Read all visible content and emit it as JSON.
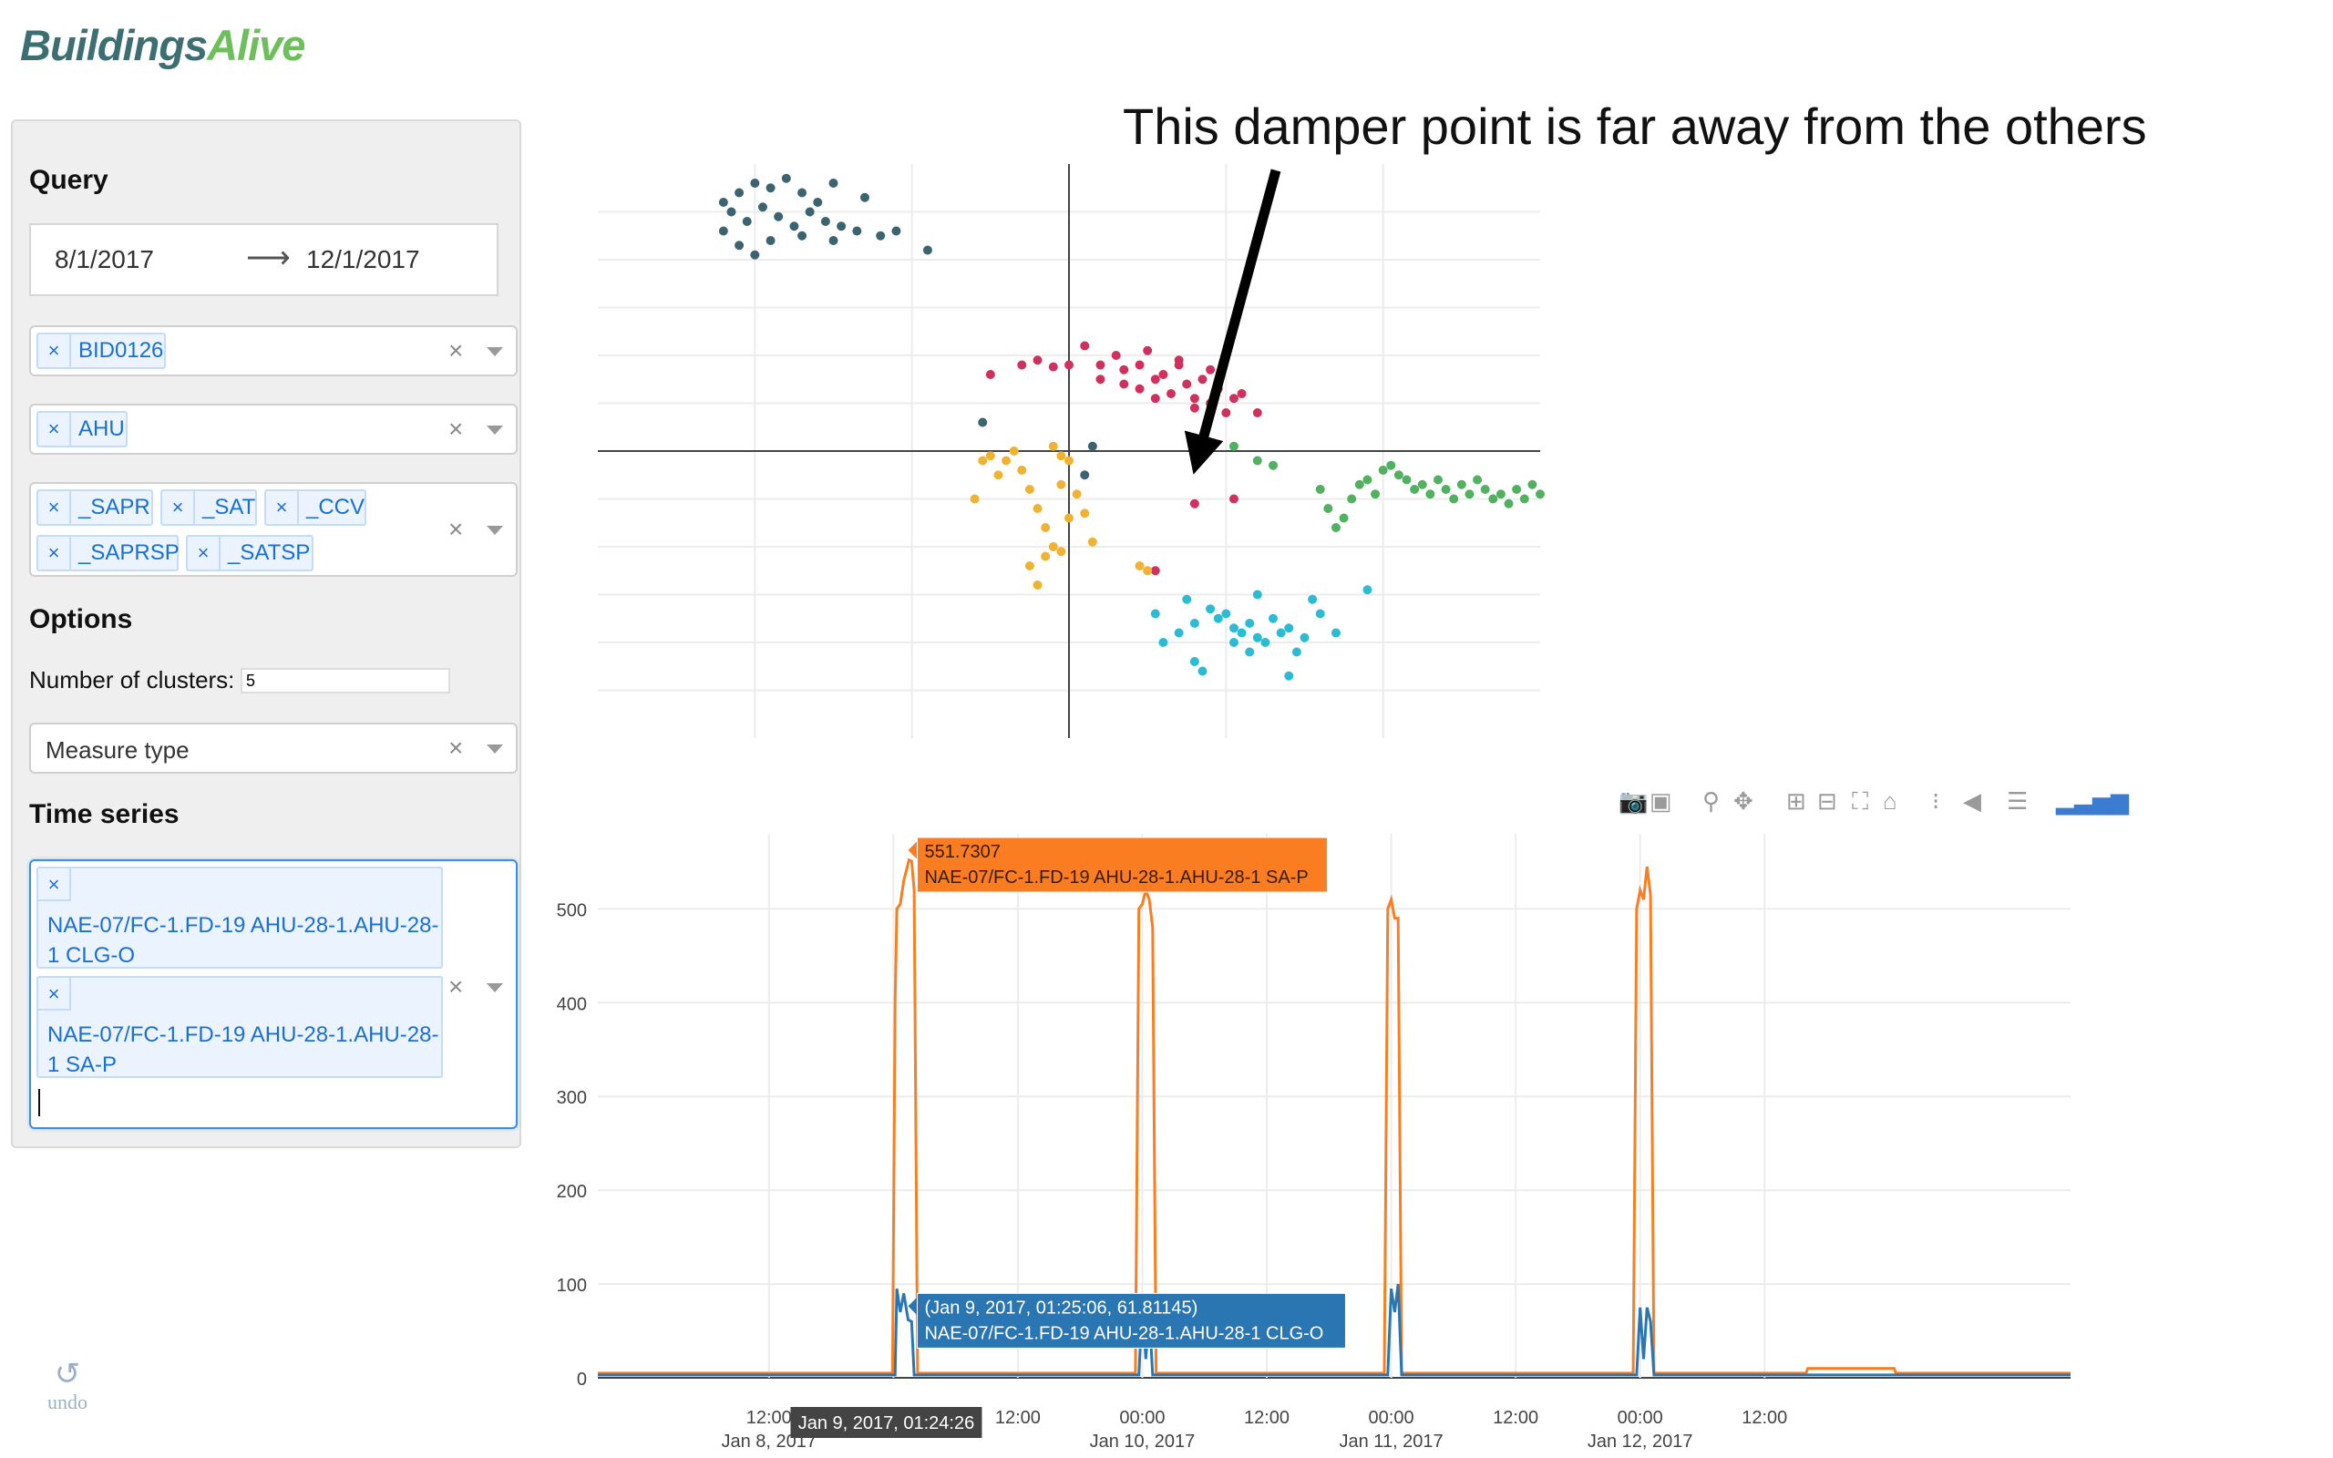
{
  "logo": {
    "part1": "Buildings",
    "part2": "Alive"
  },
  "query": {
    "title": "Query",
    "date_from": "8/1/2017",
    "arrow": "⟶",
    "date_to": "12/1/2017",
    "building": [
      "BID0126"
    ],
    "equipment": [
      "AHU"
    ],
    "points": [
      "_SAPR",
      "_SAT",
      "_CCV",
      "_SAPRSP",
      "_SATSP"
    ],
    "chip_remove": "×",
    "clear": "×"
  },
  "options": {
    "title": "Options",
    "num_clusters_label": "Number of clusters:",
    "num_clusters_value": "5",
    "measure_placeholder": "Measure type"
  },
  "time_series": {
    "title": "Time series",
    "selected": [
      "NAE-07/FC-1.FD-19 AHU-28-1.AHU-28-1 CLG-O",
      "NAE-07/FC-1.FD-19 AHU-28-1.AHU-28-1 SA-P"
    ]
  },
  "undo": {
    "icon": "↺",
    "label": "undo"
  },
  "annotation": "This damper point is far away from the others",
  "colors": {
    "cluster_slate": "#3c6470",
    "cluster_crimson": "#d0305e",
    "cluster_amber": "#f0b232",
    "cluster_green": "#52b160",
    "cluster_cyan": "#2bbcd3",
    "series_clgo": "#2a76b3",
    "series_sap": "#fa7d22",
    "chip_text": "#1a6fd1"
  },
  "modebar": {
    "icons": [
      "camera-icon",
      "save-icon",
      "zoom-icon",
      "pan-icon",
      "zoom-in-icon",
      "zoom-out-icon",
      "autoscale-icon",
      "reset-axes-icon",
      "spike-lines-icon",
      "hover-closest-icon",
      "hover-compare-icon",
      "plotly-logo-icon"
    ]
  },
  "chart_data": [
    {
      "type": "scatter",
      "title": "",
      "xlabel": "",
      "ylabel": "",
      "xlim": [
        -3,
        3
      ],
      "ylim": [
        -3,
        3
      ],
      "grid": true,
      "series": [
        {
          "color": "#3c6470",
          "points": [
            [
              -2.2,
              2.6
            ],
            [
              -2.1,
              2.7
            ],
            [
              -2,
              2.8
            ],
            [
              -1.9,
              2.75
            ],
            [
              -1.8,
              2.85
            ],
            [
              -1.7,
              2.7
            ],
            [
              -1.6,
              2.6
            ],
            [
              -1.5,
              2.8
            ],
            [
              -1.3,
              2.65
            ],
            [
              -2.15,
              2.5
            ],
            [
              -2.05,
              2.4
            ],
            [
              -1.95,
              2.55
            ],
            [
              -1.85,
              2.45
            ],
            [
              -1.75,
              2.35
            ],
            [
              -1.65,
              2.5
            ],
            [
              -1.55,
              2.4
            ],
            [
              -1.45,
              2.35
            ],
            [
              -1.35,
              2.3
            ],
            [
              -2.2,
              2.3
            ],
            [
              -2.1,
              2.15
            ],
            [
              -1.9,
              2.2
            ],
            [
              -1.7,
              2.25
            ],
            [
              -1.5,
              2.2
            ],
            [
              -1.2,
              2.25
            ],
            [
              -1.1,
              2.3
            ],
            [
              -0.9,
              2.1
            ],
            [
              -2.0,
              2.05
            ],
            [
              -0.55,
              0.3
            ],
            [
              0.1,
              -0.25
            ],
            [
              0.15,
              0.05
            ]
          ]
        },
        {
          "color": "#d0305e",
          "points": [
            [
              -0.5,
              0.8
            ],
            [
              -0.3,
              0.9
            ],
            [
              -0.2,
              0.95
            ],
            [
              -0.1,
              0.88
            ],
            [
              0,
              0.9
            ],
            [
              0.1,
              1.1
            ],
            [
              0.2,
              0.9
            ],
            [
              0.3,
              1.0
            ],
            [
              0.35,
              0.85
            ],
            [
              0.45,
              0.9
            ],
            [
              0.5,
              1.05
            ],
            [
              0.55,
              0.75
            ],
            [
              0.6,
              0.8
            ],
            [
              0.65,
              0.6
            ],
            [
              0.7,
              0.9
            ],
            [
              0.75,
              0.7
            ],
            [
              0.8,
              0.55
            ],
            [
              0.85,
              0.75
            ],
            [
              0.9,
              0.5
            ],
            [
              0.95,
              0.65
            ],
            [
              1.0,
              0.4
            ],
            [
              1.1,
              0.6
            ],
            [
              1.2,
              0.4
            ],
            [
              0.45,
              0.65
            ],
            [
              0.35,
              0.7
            ],
            [
              0.2,
              0.75
            ],
            [
              0.55,
              0.55
            ],
            [
              0.8,
              0.45
            ],
            [
              0.9,
              0.85
            ],
            [
              0.7,
              0.95
            ],
            [
              1.05,
              0.55
            ],
            [
              0.55,
              -1.25
            ],
            [
              1.05,
              -0.5
            ]
          ]
        },
        {
          "color": "#f0b232",
          "points": [
            [
              -0.55,
              -0.1
            ],
            [
              -0.5,
              -0.05
            ],
            [
              -0.45,
              -0.25
            ],
            [
              -0.4,
              -0.1
            ],
            [
              -0.35,
              0
            ],
            [
              -0.3,
              -0.2
            ],
            [
              -0.25,
              -0.4
            ],
            [
              -0.2,
              -0.6
            ],
            [
              -0.15,
              -0.8
            ],
            [
              -0.1,
              -1.0
            ],
            [
              -0.05,
              -1.05
            ],
            [
              0,
              -0.7
            ],
            [
              0.05,
              -0.45
            ],
            [
              -0.6,
              -0.5
            ],
            [
              -0.25,
              -1.2
            ],
            [
              -0.2,
              -1.4
            ],
            [
              -0.15,
              -1.1
            ],
            [
              -0.05,
              -0.35
            ],
            [
              0.1,
              -0.65
            ],
            [
              0.15,
              -0.95
            ],
            [
              -0.1,
              0.05
            ],
            [
              -0.05,
              -0.05
            ],
            [
              0,
              -0.1
            ],
            [
              0.45,
              -1.2
            ],
            [
              0.5,
              -1.25
            ]
          ]
        },
        {
          "color": "#52b160",
          "points": [
            [
              1.05,
              0.05
            ],
            [
              1.2,
              -0.1
            ],
            [
              1.3,
              -0.15
            ],
            [
              1.6,
              -0.4
            ],
            [
              1.65,
              -0.6
            ],
            [
              1.7,
              -0.8
            ],
            [
              1.75,
              -0.7
            ],
            [
              1.8,
              -0.5
            ],
            [
              1.85,
              -0.35
            ],
            [
              1.9,
              -0.3
            ],
            [
              2.0,
              -0.2
            ],
            [
              2.05,
              -0.15
            ],
            [
              2.1,
              -0.25
            ],
            [
              2.15,
              -0.3
            ],
            [
              2.2,
              -0.4
            ],
            [
              2.25,
              -0.35
            ],
            [
              2.3,
              -0.45
            ],
            [
              2.35,
              -0.3
            ],
            [
              2.4,
              -0.4
            ],
            [
              2.5,
              -0.35
            ],
            [
              2.55,
              -0.45
            ],
            [
              2.6,
              -0.3
            ],
            [
              2.7,
              -0.5
            ],
            [
              2.75,
              -0.45
            ],
            [
              2.8,
              -0.55
            ],
            [
              2.85,
              -0.4
            ],
            [
              2.9,
              -0.5
            ],
            [
              2.95,
              -0.35
            ],
            [
              3.0,
              -0.45
            ],
            [
              2.45,
              -0.5
            ],
            [
              1.95,
              -0.45
            ],
            [
              2.65,
              -0.4
            ]
          ]
        },
        {
          "color": "#2bbcd3",
          "points": [
            [
              0.55,
              -1.7
            ],
            [
              0.6,
              -2.0
            ],
            [
              0.7,
              -1.9
            ],
            [
              0.75,
              -1.55
            ],
            [
              0.8,
              -1.8
            ],
            [
              0.9,
              -1.65
            ],
            [
              1.0,
              -1.7
            ],
            [
              1.05,
              -1.85
            ],
            [
              1.1,
              -1.9
            ],
            [
              1.15,
              -1.8
            ],
            [
              1.2,
              -1.95
            ],
            [
              1.25,
              -2.0
            ],
            [
              1.3,
              -1.75
            ],
            [
              1.35,
              -1.9
            ],
            [
              1.4,
              -1.85
            ],
            [
              1.45,
              -2.1
            ],
            [
              1.5,
              -1.95
            ],
            [
              1.55,
              -1.55
            ],
            [
              1.6,
              -1.7
            ],
            [
              1.7,
              -1.9
            ],
            [
              1.9,
              -1.45
            ],
            [
              1.2,
              -1.5
            ],
            [
              0.85,
              -2.3
            ],
            [
              0.8,
              -2.2
            ],
            [
              1.4,
              -2.35
            ],
            [
              1.15,
              -2.1
            ],
            [
              1.05,
              -2.0
            ],
            [
              0.95,
              -1.75
            ]
          ]
        },
        {
          "color": "#d0305e",
          "points": [
            [
              0.8,
              -0.55
            ]
          ]
        }
      ]
    },
    {
      "type": "line",
      "title": "",
      "xlabel": "",
      "ylabel": "",
      "ylim": [
        0,
        580
      ],
      "xlim": [
        "Jan 7, 2017 19:30",
        "Jan 13, 2017 17:30"
      ],
      "x_ticks": [
        {
          "line1": "12:00",
          "line2": "Jan 8, 2017"
        },
        {
          "line1": "00:00",
          "line2": ""
        },
        {
          "line1": "12:00",
          "line2": ""
        },
        {
          "line1": "00:00",
          "line2": "Jan 10, 2017"
        },
        {
          "line1": "12:00",
          "line2": ""
        },
        {
          "line1": "00:00",
          "line2": "Jan 11, 2017"
        },
        {
          "line1": "12:00",
          "line2": ""
        },
        {
          "line1": "00:00",
          "line2": "Jan 12, 2017"
        },
        {
          "line1": "12:00",
          "line2": ""
        }
      ],
      "y_ticks": [
        "0",
        "100",
        "200",
        "300",
        "400",
        "500"
      ],
      "series": [
        {
          "name": "NAE-07/FC-1.FD-19 AHU-28-1.AHU-28-1 SA-P",
          "color": "#fa7d22",
          "x": [
            "Jan 7 19:30",
            "Jan 8 23:55",
            "Jan 9 00:10",
            "Jan 9 00:20",
            "Jan 9 00:40",
            "Jan 9 01:00",
            "Jan 9 01:30",
            "Jan 9 01:45",
            "Jan 9 02:00",
            "Jan 9 02:20",
            "Jan 9 02:30",
            "Jan 9 03:00",
            "Jan 9 23:20",
            "Jan 9 23:40",
            "Jan 10 00:00",
            "Jan 10 00:20",
            "Jan 10 00:40",
            "Jan 10 01:00",
            "Jan 10 01:20",
            "Jan 10 01:40",
            "Jan 10 03:00",
            "Jan 10 23:20",
            "Jan 10 23:40",
            "Jan 11 00:00",
            "Jan 11 00:20",
            "Jan 11 00:40",
            "Jan 11 01:00",
            "Jan 11 01:20",
            "Jan 11 01:40",
            "Jan 11 23:20",
            "Jan 11 23:40",
            "Jan 12 00:00",
            "Jan 12 00:20",
            "Jan 12 00:40",
            "Jan 12 01:00",
            "Jan 12 01:20",
            "Jan 12 01:40",
            "Jan 12 03:00",
            "Jan 12 03:10",
            "Jan 12 16:00",
            "Jan 12 16:10",
            "Jan 13 00:30",
            "Jan 13 00:40",
            "Jan 13 17:30"
          ],
          "values": [
            5,
            5,
            400,
            500,
            505,
            530,
            552,
            551,
            520,
            5,
            5,
            5,
            5,
            500,
            505,
            520,
            510,
            480,
            5,
            5,
            5,
            5,
            500,
            510,
            490,
            490,
            5,
            5,
            5,
            5,
            500,
            520,
            510,
            545,
            515,
            5,
            5,
            5,
            5,
            5,
            10,
            10,
            5,
            5
          ]
        },
        {
          "name": "NAE-07/FC-1.FD-19 AHU-28-1.AHU-28-1 CLG-O",
          "color": "#2a76b3",
          "x": [
            "Jan 7 19:30",
            "Jan 8 23:55",
            "Jan 9 00:10",
            "Jan 9 00:20",
            "Jan 9 00:40",
            "Jan 9 01:00",
            "Jan 9 01:25",
            "Jan 9 01:45",
            "Jan 9 02:00",
            "Jan 9 02:20",
            "Jan 9 03:00",
            "Jan 9 23:40",
            "Jan 10 00:00",
            "Jan 10 00:20",
            "Jan 10 00:40",
            "Jan 10 01:00",
            "Jan 10 01:20",
            "Jan 10 03:00",
            "Jan 10 23:40",
            "Jan 11 00:00",
            "Jan 11 00:20",
            "Jan 11 00:40",
            "Jan 11 01:00",
            "Jan 11 01:20",
            "Jan 11 23:40",
            "Jan 12 00:00",
            "Jan 12 00:20",
            "Jan 12 00:40",
            "Jan 12 01:00",
            "Jan 12 01:20",
            "Jan 12 03:00",
            "Jan 13 17:30"
          ],
          "values": [
            3,
            3,
            3,
            95,
            70,
            90,
            61.81,
            60,
            3,
            3,
            3,
            3,
            80,
            20,
            70,
            3,
            3,
            3,
            3,
            95,
            70,
            100,
            3,
            3,
            3,
            75,
            20,
            75,
            60,
            3,
            3,
            3
          ]
        }
      ],
      "tooltips": [
        {
          "value": "551.7307",
          "name": "NAE-07/FC-1.FD-19 AHU-28-1.AHU-28-1 SA-P",
          "color": "#fa7d22"
        },
        {
          "value": "(Jan 9, 2017, 01:25:06, 61.81145)",
          "name": "NAE-07/FC-1.FD-19 AHU-28-1.AHU-28-1 CLG-O",
          "color": "#2a76b3"
        }
      ],
      "x_hover_label": "Jan 9, 2017, 01:24:26"
    }
  ]
}
